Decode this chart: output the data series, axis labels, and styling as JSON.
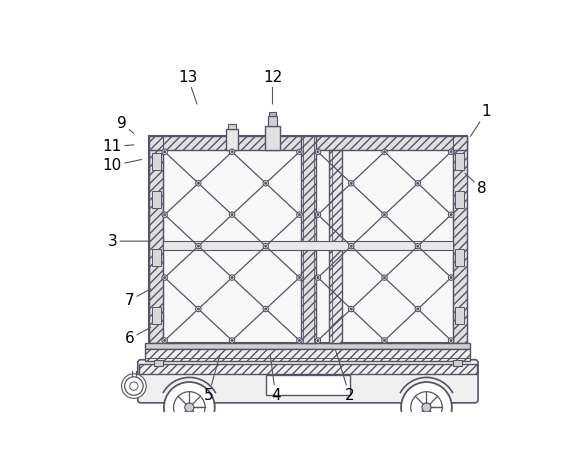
{
  "background_color": "#ffffff",
  "line_color": "#555566",
  "figsize": [
    5.79,
    4.63
  ],
  "dpi": 100,
  "label_configs": [
    [
      1,
      536,
      390,
      515,
      358
    ],
    [
      2,
      358,
      22,
      340,
      80
    ],
    [
      3,
      50,
      222,
      98,
      222
    ],
    [
      4,
      262,
      22,
      255,
      75
    ],
    [
      5,
      175,
      22,
      190,
      75
    ],
    [
      6,
      72,
      95,
      100,
      110
    ],
    [
      7,
      72,
      145,
      100,
      160
    ],
    [
      8,
      530,
      290,
      508,
      310
    ],
    [
      9,
      62,
      375,
      78,
      362
    ],
    [
      10,
      50,
      320,
      88,
      328
    ],
    [
      11,
      50,
      345,
      78,
      347
    ],
    [
      12,
      258,
      435,
      258,
      400
    ],
    [
      13,
      148,
      435,
      160,
      400
    ]
  ]
}
